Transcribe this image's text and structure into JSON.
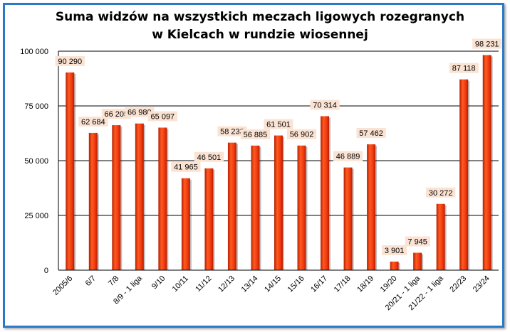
{
  "chart_data": {
    "type": "bar",
    "title": "Suma widzów na wszystkich meczach ligowych rozegranych w Kielcach w rundzie wiosennej",
    "categories": [
      "2005/6",
      "6/7",
      "7/8",
      "8/9 - 1 liga",
      "9/10",
      "10/11",
      "11/12",
      "12/13",
      "13/14",
      "14/15",
      "15/16",
      "16/17",
      "17/18",
      "18/19",
      "19/20",
      "20/21 - 1 liga",
      "21/22 - 1 liga",
      "22/23",
      "23/24"
    ],
    "values": [
      90290,
      62684,
      66205,
      66980,
      65097,
      41965,
      46501,
      58233,
      56885,
      61501,
      56902,
      70314,
      46889,
      57462,
      3901,
      7945,
      30272,
      87118,
      98231
    ],
    "value_labels": [
      "90 290",
      "62 684",
      "66 205",
      "66 980",
      "65 097",
      "41 965",
      "46 501",
      "58 233",
      "56 885",
      "61 501",
      "56 902",
      "70 314",
      "46 889",
      "57 462",
      "3 901",
      "7 945",
      "30 272",
      "87 118",
      "98 231"
    ],
    "y_ticks": [
      0,
      25000,
      50000,
      75000,
      100000
    ],
    "y_tick_labels": [
      "0",
      "25 000",
      "50 000",
      "75 000",
      "100 000"
    ],
    "ylim": [
      0,
      100000
    ],
    "grid": true,
    "legend": "none",
    "xlabel": "",
    "ylabel": ""
  },
  "colors": {
    "bar": "#f03a10",
    "bar_dark": "#c02000",
    "label_bg": "#fbe3d3",
    "frame": "#2a78c8",
    "grid": "#000000"
  }
}
